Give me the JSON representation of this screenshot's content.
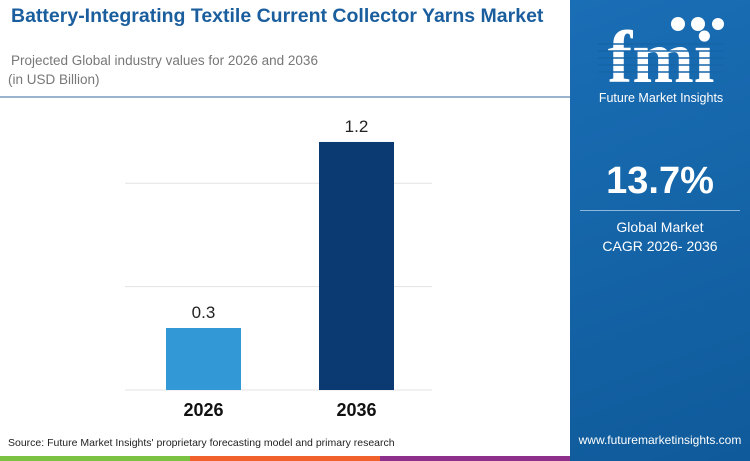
{
  "header": {
    "title": "Battery-Integrating Textile Current Collector Yarns Market",
    "subtitle": "Projected Global industry values for 2026 and 2036",
    "unit": "(in USD Billion)"
  },
  "brand": {
    "logo_letters": "fmi",
    "name": "Future Market Insights",
    "website": "www.futuremarketinsights.com"
  },
  "highlight": {
    "value": "13.7%",
    "label_line1": "Global Market",
    "label_line2": "CAGR 2026- 2036"
  },
  "footer": {
    "source": "Source: Future Market Insights' proprietary forecasting model and primary research"
  },
  "colors": {
    "panel": "#1565a8",
    "bar_2026": "#3398d6",
    "bar_2036": "#0b3a73",
    "strip": [
      "#7cc242",
      "#f0612c",
      "#8e2f8c"
    ]
  },
  "chart_data": {
    "type": "bar",
    "categories": [
      "2026",
      "2036"
    ],
    "values": [
      0.3,
      1.2
    ],
    "data_labels": [
      "0.3",
      "1.2"
    ],
    "ylabel": "",
    "xlabel": "",
    "ylim": [
      0,
      1.2
    ],
    "grid": true,
    "gridlines": [
      0.5,
      1.0
    ]
  }
}
